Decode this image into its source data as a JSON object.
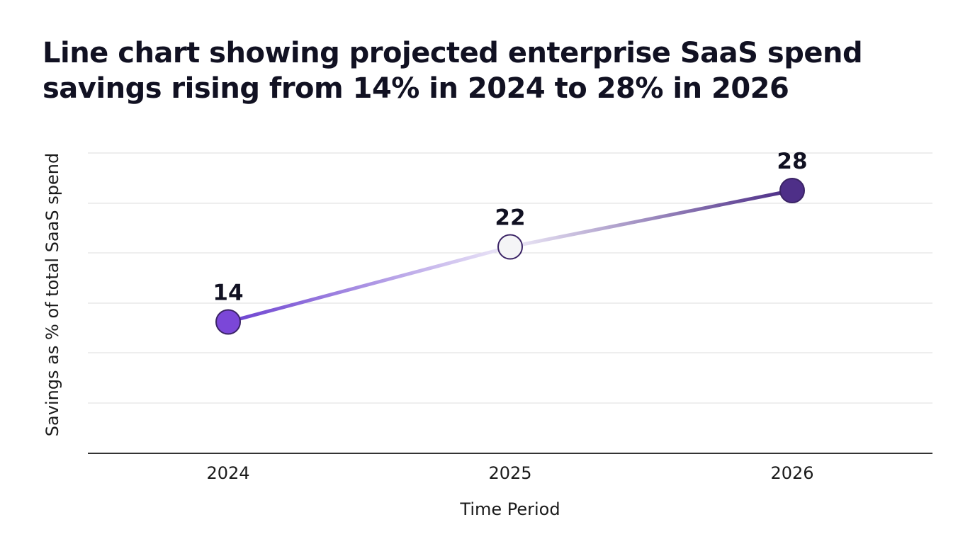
{
  "chart_data": {
    "type": "line",
    "title": "Line chart showing projected enterprise SaaS spend savings rising from 14% in 2024 to 28% in 2026",
    "xlabel": "Time Period",
    "ylabel": "Savings as % of total SaaS spend",
    "categories": [
      "2024",
      "2025",
      "2026"
    ],
    "series": [
      {
        "values": [
          14,
          22,
          28
        ],
        "data_labels": [
          "14",
          "22",
          "28"
        ]
      }
    ],
    "ylim": [
      0,
      32
    ],
    "grid": true,
    "y_tick_labels_shown": false,
    "colors": {
      "line_start": "#6a3fd0",
      "line_mid": "#eeeaf8",
      "line_end": "#4a2a85",
      "marker_fills": [
        "#7b47d8",
        "#f4f4f6",
        "#4e2f88"
      ],
      "marker_stroke": "#3b2466",
      "grid": "#dddddd",
      "axis": "#333333"
    }
  }
}
